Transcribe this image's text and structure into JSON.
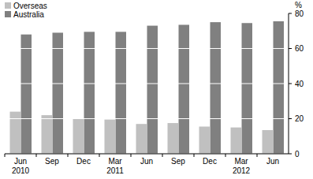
{
  "chart_data": {
    "type": "bar",
    "categories": [
      "Jun 2010",
      "Sep",
      "Dec",
      "Mar 2011",
      "Jun",
      "Sep",
      "Dec",
      "Mar 2012",
      "Jun"
    ],
    "series": [
      {
        "name": "Overseas",
        "color": "#c0c0c0",
        "values": [
          24,
          22,
          20,
          19.5,
          17,
          17.5,
          15.5,
          15,
          13.5
        ]
      },
      {
        "name": "Australia",
        "color": "#808080",
        "values": [
          68,
          69,
          69.5,
          69.5,
          73,
          73.5,
          75,
          74.5,
          75.5
        ]
      }
    ],
    "y_label": "%",
    "ylim": [
      0,
      80
    ],
    "yticks": [
      0,
      20,
      40,
      60,
      80
    ],
    "grid": true,
    "legend": "top-left"
  }
}
